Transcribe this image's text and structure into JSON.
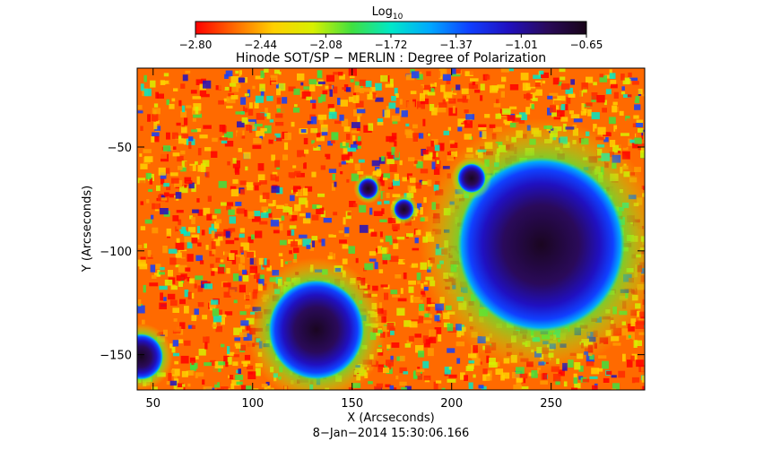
{
  "chart_data": {
    "type": "heatmap",
    "title": "Hinode SOT/SP − MERLIN : Degree of Polarization",
    "xlabel": "X (Arcseconds)",
    "ylabel": "Y (Arcseconds)",
    "footer": "8−Jan−2014 15:30:06.166",
    "xlim": [
      42,
      297
    ],
    "ylim": [
      -167,
      -12
    ],
    "xticks": [
      50,
      100,
      150,
      200,
      250
    ],
    "yticks": [
      -50,
      -100,
      -150
    ],
    "colorbar": {
      "label_base": "Log",
      "label_sub": "10",
      "min": -2.8,
      "max": -0.65,
      "ticks": [
        "−2.80",
        "−2.44",
        "−2.08",
        "−1.72",
        "−1.37",
        "−1.01",
        "−0.65"
      ],
      "colormap": [
        "#ff0000",
        "#ff6a00",
        "#ffd000",
        "#d8f000",
        "#40e040",
        "#00e8c8",
        "#00a8ff",
        "#1040ff",
        "#2010c0",
        "#2a0a5a",
        "#180418"
      ]
    },
    "features": [
      {
        "name": "large sunspot",
        "x": 245,
        "y": -97,
        "radius": 42
      },
      {
        "name": "small sunspot",
        "x": 132,
        "y": -138,
        "radius": 24
      },
      {
        "name": "pore",
        "x": 210,
        "y": -65,
        "radius": 7
      },
      {
        "name": "pore",
        "x": 158,
        "y": -70,
        "radius": 5
      },
      {
        "name": "pore",
        "x": 176,
        "y": -80,
        "radius": 5
      },
      {
        "name": "spot at edge",
        "x": 44,
        "y": -151,
        "radius": 11
      }
    ]
  }
}
